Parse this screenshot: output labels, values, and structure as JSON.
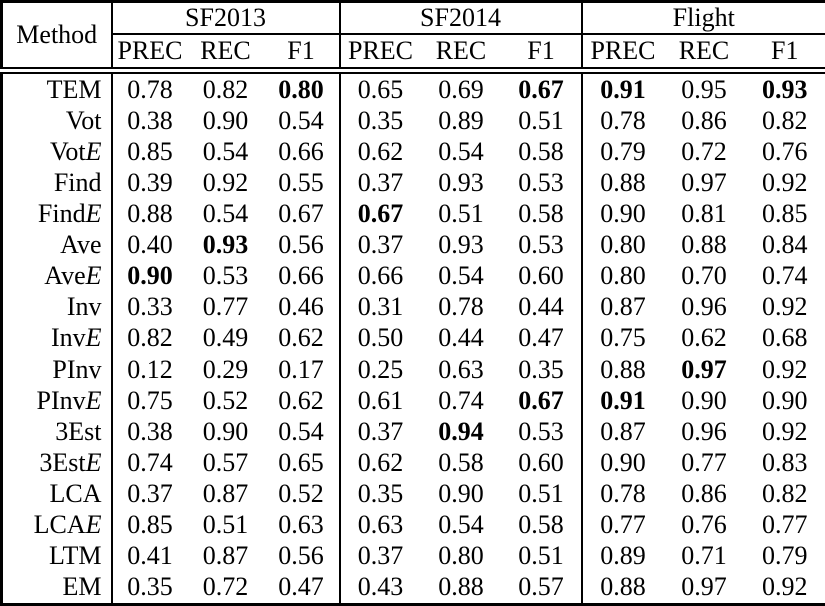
{
  "table": {
    "method_header": "Method",
    "groups": [
      {
        "label": "SF2013",
        "columns": [
          "PREC",
          "REC",
          "F1"
        ]
      },
      {
        "label": "SF2014",
        "columns": [
          "PREC",
          "REC",
          "F1"
        ]
      },
      {
        "label": "Flight",
        "columns": [
          "PREC",
          "REC",
          "F1"
        ]
      }
    ],
    "rows": [
      {
        "method": "TEM",
        "suffix": "",
        "values": [
          "0.78",
          "0.82",
          "0.80",
          "0.65",
          "0.69",
          "0.67",
          "0.91",
          "0.95",
          "0.93"
        ],
        "bold": [
          2,
          5,
          6,
          8
        ]
      },
      {
        "method": "Vot",
        "suffix": "",
        "values": [
          "0.38",
          "0.90",
          "0.54",
          "0.35",
          "0.89",
          "0.51",
          "0.78",
          "0.86",
          "0.82"
        ],
        "bold": []
      },
      {
        "method": "Vot",
        "suffix": "E",
        "values": [
          "0.85",
          "0.54",
          "0.66",
          "0.62",
          "0.54",
          "0.58",
          "0.79",
          "0.72",
          "0.76"
        ],
        "bold": []
      },
      {
        "method": "Find",
        "suffix": "",
        "values": [
          "0.39",
          "0.92",
          "0.55",
          "0.37",
          "0.93",
          "0.53",
          "0.88",
          "0.97",
          "0.92"
        ],
        "bold": []
      },
      {
        "method": "Find",
        "suffix": "E",
        "values": [
          "0.88",
          "0.54",
          "0.67",
          "0.67",
          "0.51",
          "0.58",
          "0.90",
          "0.81",
          "0.85"
        ],
        "bold": [
          3
        ]
      },
      {
        "method": "Ave",
        "suffix": "",
        "values": [
          "0.40",
          "0.93",
          "0.56",
          "0.37",
          "0.93",
          "0.53",
          "0.80",
          "0.88",
          "0.84"
        ],
        "bold": [
          1
        ]
      },
      {
        "method": "Ave",
        "suffix": "E",
        "values": [
          "0.90",
          "0.53",
          "0.66",
          "0.66",
          "0.54",
          "0.60",
          "0.80",
          "0.70",
          "0.74"
        ],
        "bold": [
          0
        ]
      },
      {
        "method": "Inv",
        "suffix": "",
        "values": [
          "0.33",
          "0.77",
          "0.46",
          "0.31",
          "0.78",
          "0.44",
          "0.87",
          "0.96",
          "0.92"
        ],
        "bold": []
      },
      {
        "method": "Inv",
        "suffix": "E",
        "values": [
          "0.82",
          "0.49",
          "0.62",
          "0.50",
          "0.44",
          "0.47",
          "0.75",
          "0.62",
          "0.68"
        ],
        "bold": []
      },
      {
        "method": "PInv",
        "suffix": "",
        "values": [
          "0.12",
          "0.29",
          "0.17",
          "0.25",
          "0.63",
          "0.35",
          "0.88",
          "0.97",
          "0.92"
        ],
        "bold": [
          7
        ]
      },
      {
        "method": "PInv",
        "suffix": "E",
        "values": [
          "0.75",
          "0.52",
          "0.62",
          "0.61",
          "0.74",
          "0.67",
          "0.91",
          "0.90",
          "0.90"
        ],
        "bold": [
          5,
          6
        ]
      },
      {
        "method": "3Est",
        "suffix": "",
        "values": [
          "0.38",
          "0.90",
          "0.54",
          "0.37",
          "0.94",
          "0.53",
          "0.87",
          "0.96",
          "0.92"
        ],
        "bold": [
          4
        ]
      },
      {
        "method": "3Est",
        "suffix": "E",
        "values": [
          "0.74",
          "0.57",
          "0.65",
          "0.62",
          "0.58",
          "0.60",
          "0.90",
          "0.77",
          "0.83"
        ],
        "bold": []
      },
      {
        "method": "LCA",
        "suffix": "",
        "values": [
          "0.37",
          "0.87",
          "0.52",
          "0.35",
          "0.90",
          "0.51",
          "0.78",
          "0.86",
          "0.82"
        ],
        "bold": []
      },
      {
        "method": "LCA",
        "suffix": "E",
        "values": [
          "0.85",
          "0.51",
          "0.63",
          "0.63",
          "0.54",
          "0.58",
          "0.77",
          "0.76",
          "0.77"
        ],
        "bold": []
      },
      {
        "method": "LTM",
        "suffix": "",
        "values": [
          "0.41",
          "0.87",
          "0.56",
          "0.37",
          "0.80",
          "0.51",
          "0.89",
          "0.71",
          "0.79"
        ],
        "bold": []
      },
      {
        "method": "EM",
        "suffix": "",
        "values": [
          "0.35",
          "0.72",
          "0.47",
          "0.43",
          "0.88",
          "0.57",
          "0.88",
          "0.97",
          "0.92"
        ],
        "bold": []
      }
    ]
  }
}
